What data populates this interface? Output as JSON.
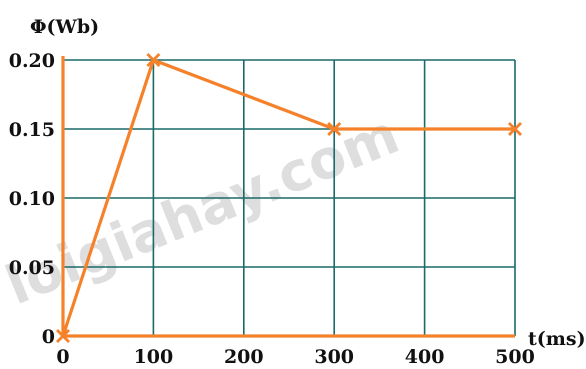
{
  "watermark": "loigiahay.com",
  "colors": {
    "grid": "#1a6a6a",
    "axis": "#f5822a",
    "series": "#f5822a",
    "text": "#111111"
  },
  "chart_data": {
    "type": "line",
    "xlabel": "t(ms)",
    "ylabel": "Φ(Wb)",
    "xlim": [
      0,
      500
    ],
    "ylim": [
      0,
      0.2
    ],
    "x_ticks": [
      "0",
      "100",
      "200",
      "300",
      "400",
      "500"
    ],
    "y_ticks": [
      "0",
      "0.05",
      "0.10",
      "0.15",
      "0.20"
    ],
    "grid": true,
    "series": [
      {
        "x": [
          0,
          100,
          300,
          500
        ],
        "y": [
          0,
          0.2,
          0.15,
          0.15
        ],
        "marker": "x"
      }
    ]
  }
}
